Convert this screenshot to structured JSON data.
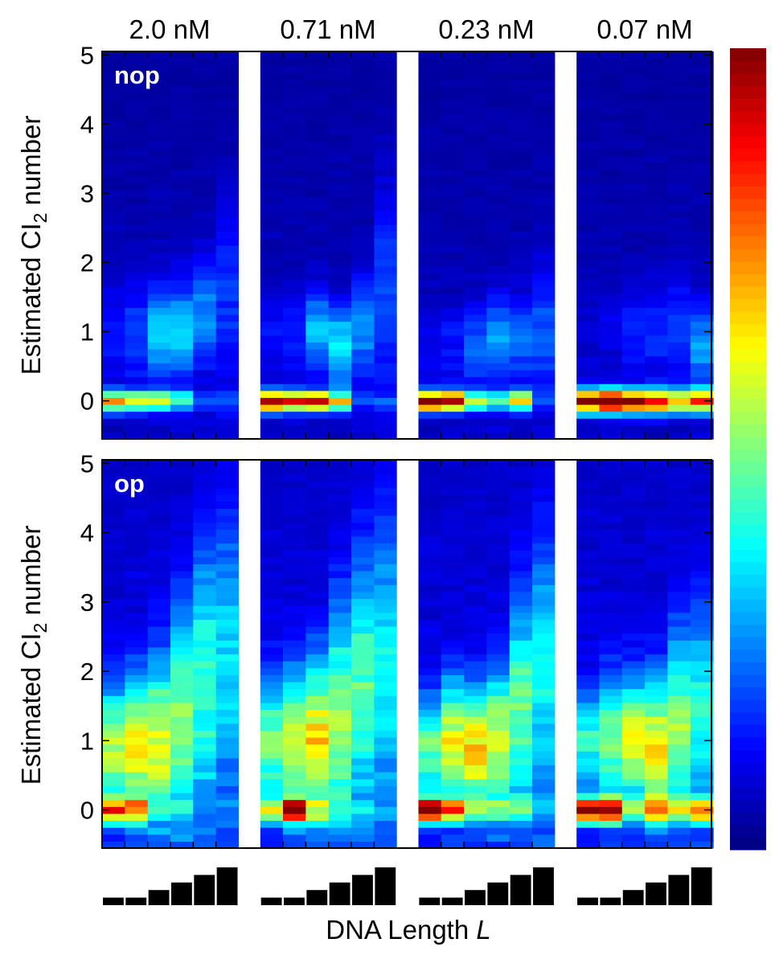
{
  "chart_data": {
    "type": "heatmap",
    "concentrations": [
      "2.0 nM",
      "0.71 nM",
      "0.23 nM",
      "0.07 nM"
    ],
    "ylabel_prefix": "Estimated CI",
    "ylabel_sub": "2",
    "ylabel_suffix": " number",
    "xlabel_prefix": "DNA Length ",
    "xlabel_var": "L",
    "ylim": [
      -0.55,
      5.05
    ],
    "yticks": [
      0,
      1,
      2,
      3,
      4,
      5
    ],
    "bins_per_unit": 10,
    "dna_length_ranks": [
      1,
      1,
      2,
      3,
      4,
      5
    ],
    "panels": [
      {
        "label": "nop",
        "background": 0.05,
        "floor": 0.02,
        "columns": [
          [
            {
              "m": 0,
              "s": 0.1,
              "a": 0.72
            },
            {
              "m": 1.0,
              "s": 0.5,
              "a": 0.08
            }
          ],
          [
            {
              "m": 0,
              "s": 0.1,
              "a": 0.6
            },
            {
              "m": 1.0,
              "s": 0.5,
              "a": 0.12
            }
          ],
          [
            {
              "m": 0,
              "s": 0.1,
              "a": 0.52
            },
            {
              "m": 1.0,
              "s": 0.45,
              "a": 0.28
            }
          ],
          [
            {
              "m": 0,
              "s": 0.1,
              "a": 0.35
            },
            {
              "m": 1.0,
              "s": 0.5,
              "a": 0.26
            }
          ],
          [
            {
              "m": 0,
              "s": 0.1,
              "a": 0.15
            },
            {
              "m": 1.3,
              "s": 0.5,
              "a": 0.22
            }
          ],
          [
            {
              "m": 0,
              "s": 0.1,
              "a": 0.12
            },
            {
              "m": 1.6,
              "s": 0.9,
              "a": 0.12
            }
          ],
          [
            {
              "m": 0,
              "s": 0.1,
              "a": 0.95
            },
            {
              "m": 1.0,
              "s": 0.4,
              "a": 0.08
            }
          ],
          [
            {
              "m": 0,
              "s": 0.1,
              "a": 0.82
            },
            {
              "m": 1.0,
              "s": 0.4,
              "a": 0.1
            }
          ],
          [
            {
              "m": 0,
              "s": 0.1,
              "a": 0.78
            },
            {
              "m": 1.0,
              "s": 0.4,
              "a": 0.25
            }
          ],
          [
            {
              "m": 0,
              "s": 0.1,
              "a": 0.55
            },
            {
              "m": 0.8,
              "s": 0.4,
              "a": 0.3
            }
          ],
          [
            {
              "m": 0,
              "s": 0.1,
              "a": 0.1
            },
            {
              "m": 1.1,
              "s": 0.5,
              "a": 0.2
            }
          ],
          [
            {
              "m": 0,
              "s": 0.1,
              "a": 0.1
            },
            {
              "m": 1.6,
              "s": 1.0,
              "a": 0.14
            }
          ],
          [
            {
              "m": 0,
              "s": 0.1,
              "a": 0.95
            },
            {
              "m": 0.8,
              "s": 0.4,
              "a": 0.05
            }
          ],
          [
            {
              "m": 0,
              "s": 0.1,
              "a": 0.85
            },
            {
              "m": 0.8,
              "s": 0.4,
              "a": 0.08
            }
          ],
          [
            {
              "m": 0,
              "s": 0.1,
              "a": 0.45
            },
            {
              "m": 0.8,
              "s": 0.4,
              "a": 0.16
            }
          ],
          [
            {
              "m": 0,
              "s": 0.1,
              "a": 0.38
            },
            {
              "m": 0.9,
              "s": 0.4,
              "a": 0.22
            }
          ],
          [
            {
              "m": 0,
              "s": 0.1,
              "a": 0.58
            },
            {
              "m": 0.9,
              "s": 0.4,
              "a": 0.18
            }
          ],
          [
            {
              "m": 0,
              "s": 0.1,
              "a": 0.1
            },
            {
              "m": 1.0,
              "s": 0.6,
              "a": 0.15
            }
          ],
          [
            {
              "m": 0,
              "s": 0.12,
              "a": 0.88
            },
            {
              "m": 1.0,
              "s": 0.5,
              "a": 0.03
            }
          ],
          [
            {
              "m": 0,
              "s": 0.12,
              "a": 0.95
            },
            {
              "m": 1.0,
              "s": 0.5,
              "a": 0.04
            }
          ],
          [
            {
              "m": 0,
              "s": 0.12,
              "a": 0.85
            },
            {
              "m": 1.0,
              "s": 0.5,
              "a": 0.08
            }
          ],
          [
            {
              "m": 0,
              "s": 0.12,
              "a": 0.8
            },
            {
              "m": 1.0,
              "s": 0.5,
              "a": 0.1
            }
          ],
          [
            {
              "m": 0,
              "s": 0.12,
              "a": 0.62
            },
            {
              "m": 1.0,
              "s": 0.5,
              "a": 0.12
            }
          ],
          [
            {
              "m": 0,
              "s": 0.12,
              "a": 0.7
            },
            {
              "m": 0.8,
              "s": 0.4,
              "a": 0.22
            }
          ]
        ]
      },
      {
        "label": "op",
        "background": 0.08,
        "floor": 0.05,
        "columns": [
          [
            {
              "m": 0,
              "s": 0.12,
              "a": 0.6
            },
            {
              "m": 0.9,
              "s": 0.6,
              "a": 0.45
            }
          ],
          [
            {
              "m": 0,
              "s": 0.12,
              "a": 0.45
            },
            {
              "m": 0.9,
              "s": 0.7,
              "a": 0.5
            }
          ],
          [
            {
              "m": 0,
              "s": 0.12,
              "a": 0.1
            },
            {
              "m": 1.0,
              "s": 0.8,
              "a": 0.48
            }
          ],
          [
            {
              "m": 0,
              "s": 0.12,
              "a": 0.08
            },
            {
              "m": 1.3,
              "s": 1.1,
              "a": 0.4
            }
          ],
          [
            {
              "m": 0,
              "s": 0.12,
              "a": 0.06
            },
            {
              "m": 1.9,
              "s": 1.3,
              "a": 0.32
            }
          ],
          [
            {
              "m": 0,
              "s": 0.12,
              "a": 0.05
            },
            {
              "m": 2.2,
              "s": 1.4,
              "a": 0.25
            }
          ],
          [
            {
              "m": 0,
              "s": 0.12,
              "a": 0.4
            },
            {
              "m": 1.0,
              "s": 0.6,
              "a": 0.4
            }
          ],
          [
            {
              "m": 0,
              "s": 0.12,
              "a": 0.78
            },
            {
              "m": 1.0,
              "s": 0.7,
              "a": 0.45
            }
          ],
          [
            {
              "m": 0,
              "s": 0.12,
              "a": 0.2
            },
            {
              "m": 1.0,
              "s": 0.8,
              "a": 0.52
            }
          ],
          [
            {
              "m": 0,
              "s": 0.12,
              "a": 0.1
            },
            {
              "m": 1.3,
              "s": 1.1,
              "a": 0.42
            }
          ],
          [
            {
              "m": 0,
              "s": 0.12,
              "a": 0.08
            },
            {
              "m": 1.8,
              "s": 1.3,
              "a": 0.35
            }
          ],
          [
            {
              "m": 0,
              "s": 0.12,
              "a": 0.05
            },
            {
              "m": 2.1,
              "s": 1.4,
              "a": 0.28
            }
          ],
          [
            {
              "m": 0,
              "s": 0.12,
              "a": 0.95
            },
            {
              "m": 0.9,
              "s": 0.5,
              "a": 0.35
            }
          ],
          [
            {
              "m": 0,
              "s": 0.12,
              "a": 0.6
            },
            {
              "m": 1.0,
              "s": 0.6,
              "a": 0.48
            }
          ],
          [
            {
              "m": 0,
              "s": 0.12,
              "a": 0.2
            },
            {
              "m": 0.9,
              "s": 0.6,
              "a": 0.52
            }
          ],
          [
            {
              "m": 0,
              "s": 0.12,
              "a": 0.22
            },
            {
              "m": 1.0,
              "s": 0.7,
              "a": 0.46
            }
          ],
          [
            {
              "m": 0,
              "s": 0.12,
              "a": 0.18
            },
            {
              "m": 1.5,
              "s": 1.1,
              "a": 0.35
            }
          ],
          [
            {
              "m": 0,
              "s": 0.12,
              "a": 0.1
            },
            {
              "m": 1.9,
              "s": 1.3,
              "a": 0.28
            }
          ],
          [
            {
              "m": 0,
              "s": 0.12,
              "a": 0.85
            },
            {
              "m": 1.0,
              "s": 0.5,
              "a": 0.3
            }
          ],
          [
            {
              "m": 0,
              "s": 0.12,
              "a": 0.8
            },
            {
              "m": 1.0,
              "s": 0.6,
              "a": 0.38
            }
          ],
          [
            {
              "m": 0,
              "s": 0.12,
              "a": 0.3
            },
            {
              "m": 1.0,
              "s": 0.6,
              "a": 0.48
            }
          ],
          [
            {
              "m": 0,
              "s": 0.12,
              "a": 0.45
            },
            {
              "m": 0.9,
              "s": 0.7,
              "a": 0.52
            }
          ],
          [
            {
              "m": 0,
              "s": 0.12,
              "a": 0.35
            },
            {
              "m": 1.2,
              "s": 0.9,
              "a": 0.4
            }
          ],
          [
            {
              "m": 0,
              "s": 0.12,
              "a": 0.52
            },
            {
              "m": 1.4,
              "s": 1.0,
              "a": 0.3
            }
          ]
        ]
      }
    ],
    "colormap": "jet"
  }
}
